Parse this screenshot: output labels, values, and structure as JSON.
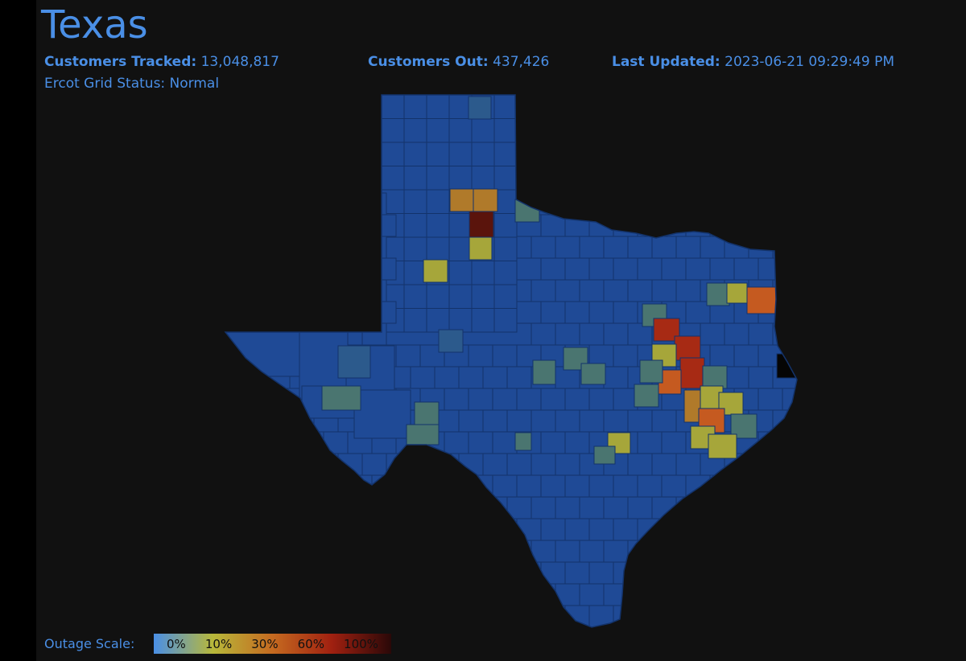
{
  "header": {
    "title": "Texas",
    "tracked_label": "Customers Tracked:",
    "tracked_value": "13,048,817",
    "out_label": "Customers Out:",
    "out_value": "437,426",
    "updated_label": "Last Updated:",
    "updated_value": "2023-06-21 09:29:49 PM",
    "grid_status": "Ercot Grid Status: Normal"
  },
  "legend": {
    "label": "Outage Scale:",
    "stops": [
      "0%",
      "10%",
      "30%",
      "60%",
      "100%"
    ],
    "colors": [
      "#4a8fe6",
      "#b8b83a",
      "#c56a20",
      "#a02010",
      "#2a0808"
    ]
  },
  "map": {
    "base_color": "#1f4a96",
    "border_color": "#13336b",
    "outage_colors": {
      "low": "#2c5a8c",
      "light": "#4a7570",
      "moderate": "#a6a63a",
      "elevated": "#b07a2a",
      "high": "#c55a20",
      "severe": "#a72a14",
      "extreme": "#5a140c",
      "nodata": "#050505"
    }
  }
}
